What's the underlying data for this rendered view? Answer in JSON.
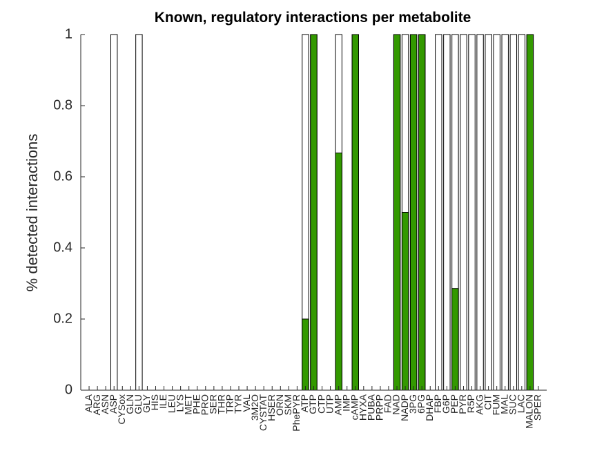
{
  "chart_data": {
    "type": "bar",
    "title": "Known, regulatory interactions per metabolite",
    "y_label": "% detected interactions",
    "categories": [
      "ALA",
      "ARG",
      "ASN",
      "ASP",
      "CYSox",
      "GLN",
      "GLU",
      "GLY",
      "HIS",
      "ILE",
      "LEU",
      "LYS",
      "MET",
      "PHE",
      "PRO",
      "SER",
      "THR",
      "TRP",
      "TYR",
      "VAL",
      "3M2O",
      "CYSTAT",
      "HSER",
      "ORN",
      "SKM",
      "PhePYR",
      "ATP",
      "GTP",
      "CTP",
      "UTP",
      "AMP",
      "IMP",
      "cAMP",
      "HYXA",
      "PUBA",
      "PRPP",
      "FAD",
      "NAD",
      "NADP",
      "3PG",
      "6PG",
      "DHAP",
      "FBP",
      "G6P",
      "PEP",
      "PYR",
      "R5P",
      "AKG",
      "CIT",
      "FUM",
      "MAL",
      "SUC",
      "LAC",
      "MALON",
      "SPER"
    ],
    "series": [
      {
        "color": "#ffffff",
        "values": [
          0,
          0,
          0,
          1,
          0,
          0,
          1,
          0,
          0,
          0,
          0,
          0,
          0,
          0,
          0,
          0,
          0,
          0,
          0,
          0,
          0,
          0,
          0,
          0,
          0,
          0,
          1,
          1,
          0,
          0,
          1,
          0,
          1,
          0,
          0,
          0,
          0,
          1,
          1,
          1,
          1,
          0,
          1,
          1,
          1,
          1,
          1,
          1,
          1,
          1,
          1,
          1,
          1,
          1,
          0
        ]
      },
      {
        "color": "#339900",
        "values": [
          0,
          0,
          0,
          0,
          0,
          0,
          0,
          0,
          0,
          0,
          0,
          0,
          0,
          0,
          0,
          0,
          0,
          0,
          0,
          0,
          0,
          0,
          0,
          0,
          0,
          0,
          0.2,
          1,
          0,
          0,
          0.667,
          0,
          1,
          0,
          0,
          0,
          0,
          1,
          0.5,
          1,
          1,
          0,
          0,
          0,
          0.286,
          0,
          0,
          0,
          0,
          0,
          0,
          0,
          0,
          1,
          0
        ]
      }
    ],
    "ylim": [
      0,
      1
    ],
    "yticks": [
      0,
      0.2,
      0.4,
      0.6,
      0.8,
      1
    ],
    "grid": false
  }
}
